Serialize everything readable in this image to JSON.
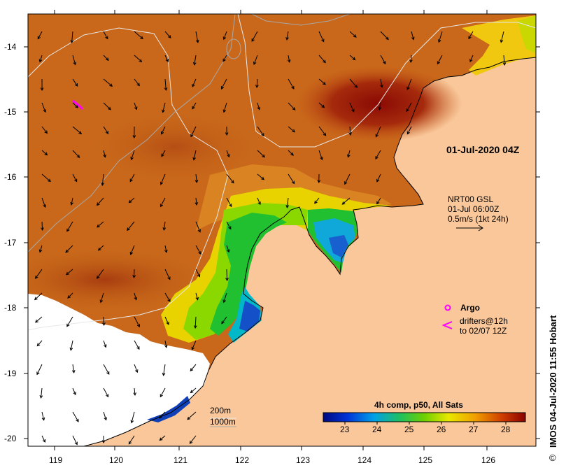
{
  "map": {
    "timestamp_label": "01-Jul-2020 04Z",
    "current_legend": {
      "line1": "NRT00 GSL",
      "line2": "01-Jul 06:00Z",
      "line3": "0.5m/s (1kt 24h)"
    },
    "argo_label": "Argo",
    "drifter_label_1": "drifters@12h",
    "drifter_label_2": "to 02/07 12Z",
    "contour_200": "200m",
    "contour_1000": "1000m",
    "colorbar_title": "4h comp, p50, All Sats",
    "colorbar_ticks": [
      "23",
      "24",
      "25",
      "26",
      "27",
      "28"
    ],
    "credit": "IMOS 04-Jul-2020 11:55 Hobart",
    "copyright_symbol": "©",
    "lat_ticks": [
      "-14",
      "-15",
      "-16",
      "-17",
      "-18",
      "-19",
      "-20"
    ],
    "lon_ticks": [
      "119",
      "120",
      "121",
      "122",
      "123",
      "124",
      "125",
      "126"
    ],
    "colors": {
      "land": "#f9c79a",
      "sst_cool": "#1a3fb0",
      "sst_green": "#22c020",
      "sst_orange": "#d27a1e",
      "sst_red": "#8b0a04",
      "drifter": "#ff00ff"
    }
  }
}
